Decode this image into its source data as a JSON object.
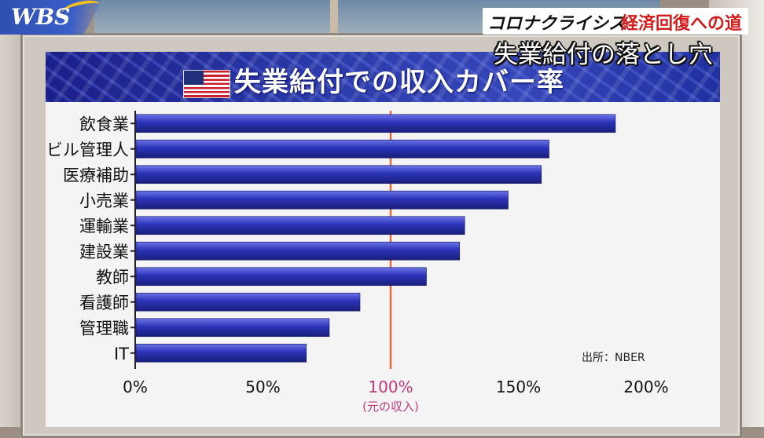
{
  "broadcast": {
    "logo": "WBS",
    "corner_tag_prefix": "コロナクライシス",
    "corner_tag_main": "経済回復への道",
    "subtitle": "失業給付の落とし穴"
  },
  "source_note": "出所：NBER",
  "colors": {
    "bar": "#2a33b8",
    "bar_highlight": "#6d74e6",
    "reference_line": "#e06a38",
    "reference_label": "#c03a78",
    "banner": "#2b3aa8"
  },
  "flag_icon": "us-flag-icon",
  "chart_data": {
    "type": "bar",
    "orientation": "horizontal",
    "title": "失業給付での収入カバー率",
    "categories": [
      "飲食業",
      "ビル管理人",
      "医療補助",
      "小売業",
      "運輸業",
      "建設業",
      "教師",
      "看護師",
      "管理職",
      "IT"
    ],
    "values": [
      188,
      162,
      159,
      146,
      129,
      127,
      114,
      88,
      76,
      67
    ],
    "xlim": [
      0,
      200
    ],
    "ticks": [
      "0%",
      "50%",
      "100%",
      "150%",
      "200%"
    ],
    "tick_values": [
      0,
      50,
      100,
      150,
      200
    ],
    "reference_value": 100,
    "reference_sublabel": "(元の収入)",
    "grid": false,
    "legend": "none"
  }
}
